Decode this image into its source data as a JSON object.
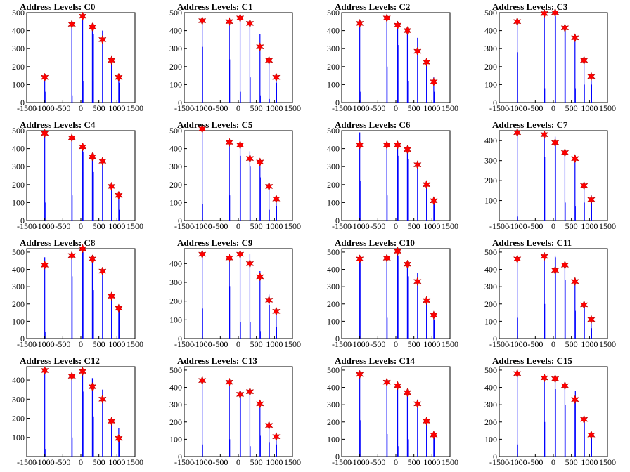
{
  "chart_data": [
    {
      "type": "bar",
      "title": "Address Levels: C0",
      "xlim": [
        -1500,
        1500
      ],
      "ylim": [
        0,
        500
      ],
      "xticks": [
        -1500,
        -1000,
        -500,
        0,
        500,
        1000,
        1500
      ],
      "yticks": [
        0,
        100,
        200,
        300,
        400,
        500
      ],
      "markers": {
        "x": [
          -1000,
          -250,
          50,
          320,
          600,
          850,
          1050
        ],
        "y": [
          140,
          435,
          480,
          420,
          350,
          235,
          140
        ]
      },
      "bars": {
        "x": [
          -1000,
          -990,
          -250,
          -240,
          50,
          60,
          320,
          330,
          600,
          610,
          850,
          860,
          1050,
          1060
        ],
        "y": [
          160,
          60,
          445,
          40,
          480,
          120,
          420,
          380,
          400,
          140,
          240,
          80,
          160,
          110
        ]
      }
    },
    {
      "type": "bar",
      "title": "Address Levels: C1",
      "xlim": [
        -1500,
        1500
      ],
      "ylim": [
        0,
        500
      ],
      "xticks": [
        -1500,
        -1000,
        -500,
        0,
        500,
        1000,
        1500
      ],
      "yticks": [
        0,
        100,
        200,
        300,
        400,
        500
      ],
      "markers": {
        "x": [
          -1000,
          -250,
          50,
          320,
          600,
          850,
          1050
        ],
        "y": [
          455,
          450,
          470,
          440,
          310,
          235,
          140
        ]
      },
      "bars": {
        "x": [
          -1000,
          -990,
          -250,
          -240,
          50,
          60,
          320,
          330,
          600,
          610,
          850,
          860,
          1050,
          1060
        ],
        "y": [
          450,
          310,
          450,
          240,
          470,
          60,
          440,
          140,
          380,
          40,
          235,
          20,
          140,
          110
        ]
      }
    },
    {
      "type": "bar",
      "title": "Address Levels: C2",
      "xlim": [
        -1500,
        1500
      ],
      "ylim": [
        0,
        500
      ],
      "xticks": [
        -1500,
        -1000,
        -500,
        0,
        500,
        1000,
        1500
      ],
      "yticks": [
        0,
        100,
        200,
        300,
        400,
        500
      ],
      "markers": {
        "x": [
          -1000,
          -250,
          50,
          320,
          600,
          850,
          1050
        ],
        "y": [
          440,
          470,
          430,
          400,
          285,
          225,
          115
        ]
      },
      "bars": {
        "x": [
          -1000,
          -990,
          -250,
          -240,
          50,
          60,
          320,
          330,
          600,
          610,
          850,
          860,
          1050,
          1060
        ],
        "y": [
          440,
          60,
          470,
          200,
          430,
          320,
          400,
          120,
          360,
          80,
          225,
          40,
          140,
          60
        ]
      }
    },
    {
      "type": "bar",
      "title": "Address Levels: C3",
      "xlim": [
        -1500,
        1500
      ],
      "ylim": [
        0,
        500
      ],
      "xticks": [
        -1500,
        -1000,
        -500,
        0,
        500,
        1000,
        1500
      ],
      "yticks": [
        0,
        100,
        200,
        300,
        400,
        500
      ],
      "markers": {
        "x": [
          -1000,
          -250,
          50,
          320,
          600,
          850,
          1050
        ],
        "y": [
          450,
          495,
          500,
          415,
          360,
          235,
          145
        ]
      },
      "bars": {
        "x": [
          -1000,
          -990,
          -250,
          -240,
          50,
          60,
          320,
          330,
          600,
          610,
          850,
          860,
          1050,
          1060
        ],
        "y": [
          450,
          280,
          495,
          80,
          500,
          480,
          415,
          400,
          360,
          80,
          235,
          100,
          145,
          100
        ]
      }
    },
    {
      "type": "bar",
      "title": "Address Levels: C4",
      "xlim": [
        -1500,
        1500
      ],
      "ylim": [
        0,
        500
      ],
      "xticks": [
        -1500,
        -1000,
        -500,
        0,
        500,
        1000,
        1500
      ],
      "yticks": [
        0,
        100,
        200,
        300,
        400,
        500
      ],
      "markers": {
        "x": [
          -1000,
          -250,
          50,
          320,
          600,
          850,
          1050
        ],
        "y": [
          485,
          460,
          410,
          355,
          330,
          190,
          140
        ]
      },
      "bars": {
        "x": [
          -1000,
          -990,
          -250,
          -240,
          50,
          60,
          320,
          330,
          600,
          610,
          850,
          860,
          1050,
          1060
        ],
        "y": [
          485,
          100,
          460,
          140,
          420,
          380,
          370,
          270,
          330,
          240,
          200,
          160,
          140,
          60
        ]
      }
    },
    {
      "type": "bar",
      "title": "Address Levels: C5",
      "xlim": [
        -1500,
        1500
      ],
      "ylim": [
        0,
        500
      ],
      "xticks": [
        -1500,
        -1000,
        -500,
        0,
        500,
        1000,
        1500
      ],
      "yticks": [
        0,
        100,
        200,
        300,
        400,
        500
      ],
      "markers": {
        "x": [
          -1000,
          -250,
          50,
          320,
          600,
          850,
          1050
        ],
        "y": [
          510,
          435,
          420,
          345,
          325,
          190,
          120
        ]
      },
      "bars": {
        "x": [
          -1000,
          -990,
          -250,
          -240,
          50,
          60,
          320,
          330,
          600,
          610,
          850,
          860,
          1050,
          1060
        ],
        "y": [
          510,
          90,
          435,
          140,
          420,
          360,
          385,
          300,
          325,
          240,
          190,
          60,
          120,
          80
        ]
      }
    },
    {
      "type": "bar",
      "title": "Address Levels: C6",
      "xlim": [
        -1500,
        1500
      ],
      "ylim": [
        0,
        500
      ],
      "xticks": [
        -1500,
        -1000,
        -500,
        0,
        500,
        1000,
        1500
      ],
      "yticks": [
        0,
        100,
        200,
        300,
        400,
        500
      ],
      "markers": {
        "x": [
          -1000,
          -250,
          50,
          320,
          600,
          850,
          1050
        ],
        "y": [
          420,
          420,
          420,
          395,
          310,
          200,
          110
        ]
      },
      "bars": {
        "x": [
          -1000,
          -990,
          -250,
          -240,
          50,
          60,
          320,
          330,
          600,
          610,
          850,
          860,
          1050,
          1060
        ],
        "y": [
          490,
          220,
          420,
          140,
          420,
          360,
          395,
          340,
          320,
          280,
          200,
          100,
          110,
          90
        ]
      }
    },
    {
      "type": "bar",
      "title": "Address Levels: C7",
      "xlim": [
        -1500,
        1500
      ],
      "ylim": [
        0,
        450
      ],
      "xticks": [
        -1500,
        -1000,
        -500,
        0,
        500,
        1000,
        1500
      ],
      "yticks": [
        100,
        200,
        300,
        400
      ],
      "markers": {
        "x": [
          -1000,
          -250,
          50,
          320,
          600,
          850,
          1050
        ],
        "y": [
          440,
          430,
          390,
          340,
          310,
          175,
          105
        ]
      },
      "bars": {
        "x": [
          -1000,
          -990,
          -250,
          -240,
          50,
          60,
          320,
          330,
          600,
          610,
          850,
          860,
          1050,
          1060
        ],
        "y": [
          440,
          20,
          430,
          320,
          420,
          390,
          350,
          90,
          310,
          70,
          175,
          90,
          130,
          110
        ]
      }
    },
    {
      "type": "bar",
      "title": "Address Levels: C8",
      "xlim": [
        -1500,
        1500
      ],
      "ylim": [
        0,
        520
      ],
      "xticks": [
        -1500,
        -1000,
        -500,
        0,
        500,
        1000,
        1500
      ],
      "yticks": [
        0,
        100,
        200,
        300,
        400,
        500
      ],
      "markers": {
        "x": [
          -1000,
          -250,
          50,
          320,
          600,
          850,
          1050
        ],
        "y": [
          425,
          480,
          520,
          460,
          390,
          245,
          175
        ]
      },
      "bars": {
        "x": [
          -1000,
          -990,
          -250,
          -240,
          50,
          60,
          320,
          330,
          600,
          610,
          850,
          860,
          1050,
          1060
        ],
        "y": [
          470,
          40,
          480,
          360,
          520,
          500,
          460,
          280,
          390,
          360,
          245,
          200,
          175,
          170
        ]
      }
    },
    {
      "type": "bar",
      "title": "Address Levels: C9",
      "xlim": [
        -1500,
        1500
      ],
      "ylim": [
        0,
        480
      ],
      "xticks": [
        -1500,
        -1000,
        -500,
        0,
        500,
        1000,
        1500
      ],
      "yticks": [
        0,
        100,
        200,
        300,
        400
      ],
      "markers": {
        "x": [
          -1000,
          -250,
          50,
          320,
          600,
          850,
          1050
        ],
        "y": [
          450,
          430,
          450,
          400,
          330,
          205,
          145
        ]
      },
      "bars": {
        "x": [
          -1000,
          -990,
          -250,
          -240,
          50,
          60,
          320,
          330,
          600,
          610,
          850,
          860,
          1050,
          1060
        ],
        "y": [
          450,
          160,
          430,
          280,
          460,
          90,
          450,
          90,
          360,
          40,
          235,
          180,
          145,
          60
        ]
      }
    },
    {
      "type": "bar",
      "title": "Address Levels: C10",
      "xlim": [
        -1500,
        1500
      ],
      "ylim": [
        0,
        520
      ],
      "xticks": [
        -1500,
        -1000,
        -500,
        0,
        500,
        1000,
        1500
      ],
      "yticks": [
        0,
        100,
        200,
        300,
        400,
        500
      ],
      "markers": {
        "x": [
          -1000,
          -250,
          50,
          320,
          600,
          850,
          1050
        ],
        "y": [
          460,
          465,
          505,
          430,
          330,
          220,
          135
        ]
      },
      "bars": {
        "x": [
          -1000,
          -990,
          -250,
          -240,
          50,
          60,
          320,
          330,
          600,
          610,
          850,
          860,
          1050,
          1060
        ],
        "y": [
          460,
          450,
          465,
          120,
          510,
          480,
          430,
          360,
          380,
          80,
          220,
          70,
          135,
          110
        ]
      }
    },
    {
      "type": "bar",
      "title": "Address Levels: C11",
      "xlim": [
        -1500,
        1500
      ],
      "ylim": [
        0,
        520
      ],
      "xticks": [
        -1500,
        -1000,
        -500,
        0,
        500,
        1000,
        1500
      ],
      "yticks": [
        0,
        100,
        200,
        300,
        400,
        500
      ],
      "markers": {
        "x": [
          -1000,
          -250,
          50,
          320,
          600,
          850,
          1050
        ],
        "y": [
          460,
          475,
          395,
          425,
          330,
          195,
          110
        ]
      },
      "bars": {
        "x": [
          -1000,
          -990,
          -250,
          -240,
          50,
          60,
          320,
          330,
          600,
          610,
          850,
          860,
          1050,
          1060
        ],
        "y": [
          460,
          120,
          475,
          200,
          480,
          470,
          425,
          340,
          330,
          160,
          195,
          190,
          110,
          60
        ]
      }
    },
    {
      "type": "bar",
      "title": "Address Levels: C12",
      "xlim": [
        -1500,
        1500
      ],
      "ylim": [
        0,
        470
      ],
      "xticks": [
        -1500,
        -1000,
        -500,
        0,
        500,
        1000,
        1500
      ],
      "yticks": [
        100,
        200,
        300,
        400
      ],
      "markers": {
        "x": [
          -1000,
          -250,
          50,
          320,
          600,
          850,
          1050
        ],
        "y": [
          450,
          420,
          445,
          365,
          300,
          185,
          95
        ]
      },
      "bars": {
        "x": [
          -1000,
          -990,
          -250,
          -240,
          50,
          60,
          320,
          330,
          600,
          610,
          850,
          860,
          1050,
          1060
        ],
        "y": [
          450,
          40,
          420,
          100,
          445,
          340,
          410,
          210,
          350,
          190,
          185,
          170,
          150,
          110
        ]
      }
    },
    {
      "type": "bar",
      "title": "Address Levels: C13",
      "xlim": [
        -1500,
        1500
      ],
      "ylim": [
        0,
        520
      ],
      "xticks": [
        -1500,
        -1000,
        -500,
        0,
        500,
        1000,
        1500
      ],
      "yticks": [
        0,
        100,
        200,
        300,
        400,
        500
      ],
      "markers": {
        "x": [
          -1000,
          -250,
          50,
          320,
          600,
          850,
          1050
        ],
        "y": [
          440,
          430,
          360,
          375,
          305,
          180,
          115
        ]
      },
      "bars": {
        "x": [
          -1000,
          -990,
          -250,
          -240,
          50,
          60,
          320,
          330,
          600,
          610,
          850,
          860,
          1050,
          1060
        ],
        "y": [
          440,
          70,
          430,
          100,
          360,
          380,
          375,
          60,
          305,
          120,
          180,
          80,
          115,
          70
        ]
      }
    },
    {
      "type": "bar",
      "title": "Address Levels: C14",
      "xlim": [
        -1500,
        1500
      ],
      "ylim": [
        0,
        520
      ],
      "xticks": [
        -1500,
        -1000,
        -500,
        0,
        500,
        1000,
        1500
      ],
      "yticks": [
        0,
        100,
        200,
        300,
        400,
        500
      ],
      "markers": {
        "x": [
          -1000,
          -250,
          50,
          320,
          600,
          850,
          1050
        ],
        "y": [
          475,
          430,
          410,
          370,
          305,
          205,
          125
        ]
      },
      "bars": {
        "x": [
          -1000,
          -990,
          -250,
          -240,
          50,
          60,
          320,
          330,
          600,
          610,
          850,
          860,
          1050,
          1060
        ],
        "y": [
          475,
          210,
          430,
          130,
          410,
          60,
          370,
          100,
          330,
          80,
          205,
          40,
          125,
          110
        ]
      }
    },
    {
      "type": "bar",
      "title": "Address Levels: C15",
      "xlim": [
        -1500,
        1500
      ],
      "ylim": [
        0,
        520
      ],
      "xticks": [
        -1500,
        -1000,
        -500,
        0,
        500,
        1000,
        1500
      ],
      "yticks": [
        0,
        100,
        200,
        300,
        400,
        500
      ],
      "markers": {
        "x": [
          -1000,
          -250,
          50,
          320,
          600,
          850,
          1050
        ],
        "y": [
          480,
          455,
          450,
          410,
          330,
          215,
          125
        ]
      },
      "bars": {
        "x": [
          -1000,
          -990,
          -250,
          -240,
          50,
          60,
          320,
          330,
          600,
          610,
          850,
          860,
          1050,
          1060
        ],
        "y": [
          480,
          70,
          455,
          200,
          450,
          390,
          410,
          300,
          330,
          380,
          215,
          200,
          125,
          110
        ]
      }
    }
  ],
  "colors": {
    "bar": "#0000ff",
    "marker": "#ff0000",
    "axis": "#000000"
  }
}
